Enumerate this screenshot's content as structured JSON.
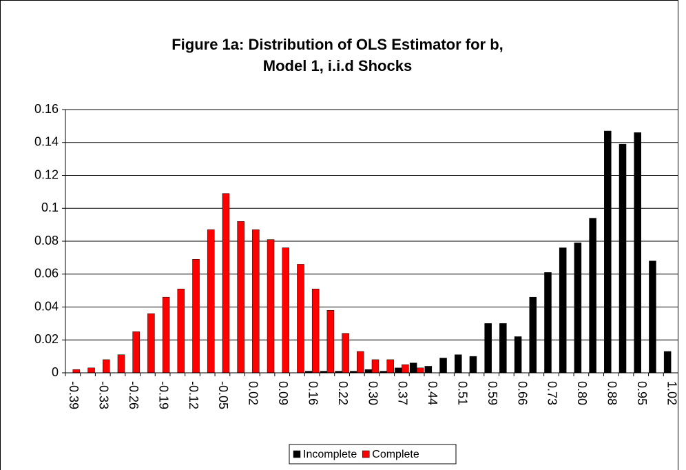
{
  "chart_data": {
    "type": "bar",
    "title": "Figure 1a: Distribution of OLS Estimator for b,",
    "subtitle": "Model 1, i.i.d Shocks",
    "categories": [
      "-0.39",
      null,
      "-0.33",
      null,
      "-0.26",
      null,
      "-0.19",
      null,
      "-0.12",
      null,
      "-0.05",
      null,
      "0.02",
      null,
      "0.09",
      null,
      "0.16",
      null,
      "0.22",
      null,
      "0.30",
      null,
      "0.37",
      null,
      "0.44",
      null,
      "0.51",
      null,
      "0.59",
      null,
      "0.66",
      null,
      "0.73",
      null,
      "0.80",
      null,
      "0.88",
      null,
      "0.95",
      null,
      "1.02"
    ],
    "series": [
      {
        "name": "Incomplete",
        "color": "#000000",
        "values": [
          0,
          0,
          0,
          0,
          0,
          0,
          0,
          0,
          0,
          0,
          0,
          0,
          0,
          0,
          0,
          0,
          0.001,
          0.001,
          0.001,
          0.001,
          0.002,
          0.001,
          0.003,
          0.006,
          0.004,
          0.009,
          0.011,
          0.01,
          0.03,
          0.03,
          0.022,
          0.046,
          0.061,
          0.076,
          0.079,
          0.094,
          0.147,
          0.139,
          0.146,
          0.068,
          0.013
        ]
      },
      {
        "name": "Complete",
        "color": "#ff0000",
        "values": [
          0.002,
          0.003,
          0.008,
          0.011,
          0.025,
          0.036,
          0.046,
          0.051,
          0.069,
          0.087,
          0.109,
          0.092,
          0.087,
          0.081,
          0.076,
          0.066,
          0.051,
          0.038,
          0.024,
          0.013,
          0.008,
          0.008,
          0.005,
          0.003,
          0,
          0,
          0,
          0,
          0,
          0,
          0,
          0,
          0,
          0,
          0,
          0,
          0,
          0,
          0,
          0,
          0
        ]
      }
    ],
    "ylim": [
      0,
      0.16
    ],
    "yticks": [
      0,
      0.02,
      0.04,
      0.06,
      0.08,
      0.1,
      0.12,
      0.14,
      0.16
    ],
    "grid": true,
    "legend": "bottom"
  }
}
